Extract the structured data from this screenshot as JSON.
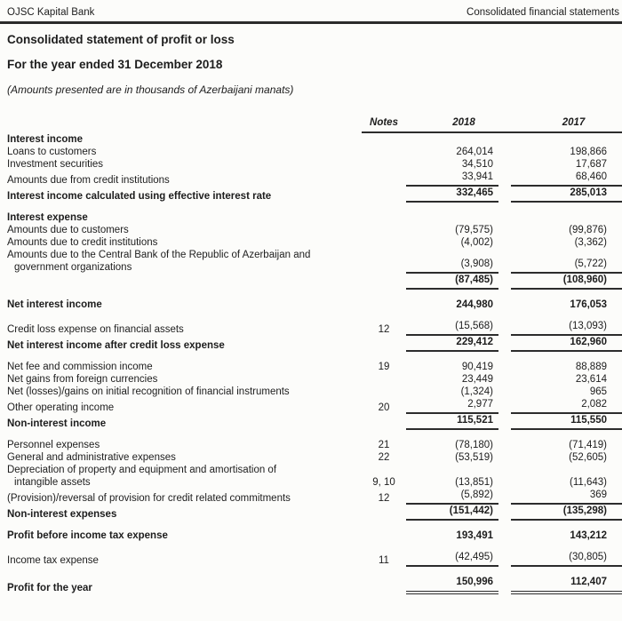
{
  "page_header": {
    "left": "OJSC Kapital Bank",
    "right": "Consolidated financial statements"
  },
  "title": "Consolidated statement of profit or loss",
  "subtitle": "For the year ended 31 December 2018",
  "amounts_note": "(Amounts presented are in thousands of Azerbaijani manats)",
  "table": {
    "columns": {
      "notes": "Notes",
      "y2018": "2018",
      "y2017": "2017"
    },
    "rows": [
      {
        "label": "Interest income",
        "section": true
      },
      {
        "label": "Loans to customers",
        "v2018": "264,014",
        "v2017": "198,866"
      },
      {
        "label": "Investment securities",
        "v2018": "34,510",
        "v2017": "17,687"
      },
      {
        "label": "Amounts due from credit institutions",
        "v2018": "33,941",
        "v2017": "68,460",
        "rule_bottom": true
      },
      {
        "label": "Interest income calculated using effective interest rate",
        "total": true,
        "v2018": "332,465",
        "v2017": "285,013",
        "rule_bottom": true
      },
      {
        "label": "Interest expense",
        "section": true,
        "gap_above": true
      },
      {
        "label": "Amounts due to customers",
        "v2018": "(79,575)",
        "v2017": "(99,876)"
      },
      {
        "label": "Amounts due to credit institutions",
        "v2018": "(4,002)",
        "v2017": "(3,362)"
      },
      {
        "label": "Amounts due to the Central Bank of the Republic of Azerbaijan and",
        "label2": "government organizations",
        "v2018": "(3,908)",
        "v2017": "(5,722)",
        "rule_bottom": true
      },
      {
        "label": "",
        "total": true,
        "v2018": "(87,485)",
        "v2017": "(108,960)",
        "rule_bottom": true
      },
      {
        "label": "Net interest income",
        "total": true,
        "v2018": "244,980",
        "v2017": "176,053",
        "gap_above": true
      },
      {
        "label": "Credit loss expense on financial assets",
        "notes": "12",
        "v2018": "(15,568)",
        "v2017": "(13,093)",
        "rule_bottom": true,
        "gap_above": true
      },
      {
        "label": "Net interest income after credit loss expense",
        "total": true,
        "v2018": "229,412",
        "v2017": "162,960",
        "rule_bottom": true
      },
      {
        "label": "Net fee and commission income",
        "notes": "19",
        "v2018": "90,419",
        "v2017": "88,889",
        "gap_above": true
      },
      {
        "label": "Net gains from foreign currencies",
        "v2018": "23,449",
        "v2017": "23,614"
      },
      {
        "label": "Net (losses)/gains on initial recognition of financial instruments",
        "v2018": "(1,324)",
        "v2017": "965"
      },
      {
        "label": "Other operating income",
        "notes": "20",
        "v2018": "2,977",
        "v2017": "2,082",
        "rule_bottom": true
      },
      {
        "label": "Non-interest income",
        "total": true,
        "v2018": "115,521",
        "v2017": "115,550",
        "rule_bottom": true
      },
      {
        "label": "Personnel expenses",
        "notes": "21",
        "v2018": "(78,180)",
        "v2017": "(71,419)",
        "gap_above": true
      },
      {
        "label": "General and administrative expenses",
        "notes": "22",
        "v2018": "(53,519)",
        "v2017": "(52,605)"
      },
      {
        "label": "Depreciation of property and equipment and amortisation of",
        "label2": "intangible assets",
        "notes": "9, 10",
        "v2018": "(13,851)",
        "v2017": "(11,643)"
      },
      {
        "label": "(Provision)/reversal of provision for credit related commitments",
        "notes": "12",
        "v2018": "(5,892)",
        "v2017": "369",
        "rule_bottom": true
      },
      {
        "label": "Non-interest expenses",
        "total": true,
        "v2018": "(151,442)",
        "v2017": "(135,298)",
        "rule_bottom": true
      },
      {
        "label": "Profit before income tax expense",
        "total": true,
        "v2018": "193,491",
        "v2017": "143,212",
        "gap_above": true
      },
      {
        "label": "Income tax expense",
        "notes": "11",
        "v2018": "(42,495)",
        "v2017": "(30,805)",
        "rule_bottom": true,
        "gap_above": true
      },
      {
        "label": "Profit for the year",
        "total": true,
        "v2018": "150,996",
        "v2017": "112,407",
        "double_bottom": true,
        "gap_above": true
      }
    ]
  }
}
